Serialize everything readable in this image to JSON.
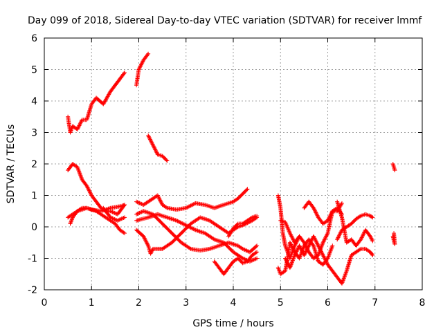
{
  "chart_data": {
    "type": "scatter",
    "title": "Day 099 of 2018, Sidereal Day-to-day VTEC variation (SDTVAR) for receiver lmmf",
    "xlabel": "GPS time / hours",
    "ylabel": "SDTVAR / TECUs",
    "xlim": [
      0,
      8
    ],
    "ylim": [
      -2,
      6
    ],
    "x_ticks": [
      "0",
      "1",
      "2",
      "3",
      "4",
      "5",
      "6",
      "7",
      "8"
    ],
    "y_ticks": [
      "-2",
      "-1",
      "0",
      "1",
      "2",
      "3",
      "4",
      "5",
      "6"
    ],
    "grid": true,
    "marker": "+",
    "color": "#ff0000",
    "traces": [
      [
        [
          0.5,
          3.5
        ],
        [
          0.55,
          3.0
        ],
        [
          0.6,
          3.2
        ],
        [
          0.7,
          3.1
        ],
        [
          0.8,
          3.4
        ],
        [
          0.9,
          3.4
        ],
        [
          1.0,
          3.9
        ],
        [
          1.1,
          4.1
        ],
        [
          1.25,
          3.9
        ],
        [
          1.4,
          4.3
        ],
        [
          1.55,
          4.6
        ],
        [
          1.7,
          4.9
        ]
      ],
      [
        [
          1.95,
          4.5
        ],
        [
          2.0,
          5.0
        ],
        [
          2.1,
          5.3
        ],
        [
          2.2,
          5.5
        ]
      ],
      [
        [
          2.2,
          2.9
        ],
        [
          2.3,
          2.6
        ],
        [
          2.4,
          2.3
        ],
        [
          2.5,
          2.25
        ],
        [
          2.6,
          2.1
        ]
      ],
      [
        [
          0.5,
          1.8
        ],
        [
          0.6,
          2.0
        ],
        [
          0.7,
          1.9
        ],
        [
          0.8,
          1.5
        ],
        [
          0.9,
          1.3
        ],
        [
          1.0,
          1.0
        ],
        [
          1.1,
          0.8
        ],
        [
          1.2,
          0.6
        ],
        [
          1.3,
          0.5
        ],
        [
          1.4,
          0.5
        ],
        [
          1.55,
          0.4
        ],
        [
          1.7,
          0.7
        ]
      ],
      [
        [
          0.55,
          0.1
        ],
        [
          0.6,
          0.3
        ],
        [
          0.7,
          0.5
        ],
        [
          0.8,
          0.6
        ],
        [
          0.9,
          0.6
        ],
        [
          1.0,
          0.55
        ],
        [
          1.2,
          0.5
        ],
        [
          1.4,
          0.6
        ],
        [
          1.6,
          0.65
        ],
        [
          1.7,
          0.7
        ]
      ],
      [
        [
          0.5,
          0.3
        ],
        [
          0.7,
          0.5
        ],
        [
          0.9,
          0.6
        ],
        [
          1.1,
          0.5
        ],
        [
          1.3,
          0.3
        ],
        [
          1.5,
          0.1
        ],
        [
          1.6,
          -0.1
        ],
        [
          1.7,
          -0.2
        ]
      ],
      [
        [
          1.25,
          0.6
        ],
        [
          1.4,
          0.3
        ],
        [
          1.55,
          0.2
        ],
        [
          1.7,
          0.3
        ]
      ],
      [
        [
          1.95,
          0.8
        ],
        [
          2.1,
          0.7
        ],
        [
          2.3,
          0.9
        ],
        [
          2.4,
          1.0
        ],
        [
          2.5,
          0.7
        ],
        [
          2.6,
          0.6
        ],
        [
          2.8,
          0.55
        ],
        [
          3.0,
          0.6
        ],
        [
          3.2,
          0.75
        ],
        [
          3.4,
          0.7
        ],
        [
          3.6,
          0.6
        ],
        [
          3.8,
          0.7
        ],
        [
          4.0,
          0.8
        ],
        [
          4.1,
          0.9
        ],
        [
          4.2,
          1.05
        ],
        [
          4.3,
          1.2
        ]
      ],
      [
        [
          1.95,
          0.4
        ],
        [
          2.1,
          0.5
        ],
        [
          2.3,
          0.4
        ],
        [
          2.5,
          0.1
        ],
        [
          2.7,
          -0.2
        ],
        [
          2.9,
          -0.5
        ],
        [
          3.1,
          -0.7
        ],
        [
          3.3,
          -0.75
        ],
        [
          3.5,
          -0.7
        ],
        [
          3.7,
          -0.6
        ],
        [
          3.9,
          -0.5
        ],
        [
          4.1,
          -0.6
        ],
        [
          4.2,
          -0.7
        ],
        [
          4.35,
          -0.8
        ],
        [
          4.5,
          -0.6
        ]
      ],
      [
        [
          1.95,
          0.2
        ],
        [
          2.2,
          0.3
        ],
        [
          2.4,
          0.4
        ],
        [
          2.6,
          0.3
        ],
        [
          2.8,
          0.2
        ],
        [
          3.0,
          0.05
        ],
        [
          3.2,
          -0.1
        ],
        [
          3.4,
          -0.2
        ],
        [
          3.6,
          -0.4
        ],
        [
          3.8,
          -0.5
        ],
        [
          4.0,
          -0.8
        ],
        [
          4.2,
          -1.0
        ],
        [
          4.35,
          -1.1
        ],
        [
          4.5,
          -1.0
        ]
      ],
      [
        [
          1.95,
          -0.1
        ],
        [
          2.1,
          -0.3
        ],
        [
          2.2,
          -0.6
        ],
        [
          2.25,
          -0.85
        ],
        [
          2.3,
          -0.7
        ],
        [
          2.5,
          -0.7
        ],
        [
          2.7,
          -0.5
        ],
        [
          2.9,
          -0.2
        ],
        [
          3.1,
          0.1
        ],
        [
          3.3,
          0.3
        ],
        [
          3.5,
          0.2
        ],
        [
          3.7,
          0.0
        ],
        [
          3.9,
          -0.2
        ],
        [
          4.0,
          -0.1
        ],
        [
          4.1,
          0.0
        ],
        [
          4.2,
          0.05
        ],
        [
          4.4,
          0.2
        ],
        [
          4.5,
          0.3
        ]
      ],
      [
        [
          3.6,
          -1.1
        ],
        [
          3.7,
          -1.3
        ],
        [
          3.8,
          -1.5
        ],
        [
          3.9,
          -1.3
        ],
        [
          4.0,
          -1.1
        ],
        [
          4.1,
          -1.0
        ],
        [
          4.2,
          -1.15
        ],
        [
          4.3,
          -1.1
        ],
        [
          4.4,
          -0.9
        ],
        [
          4.5,
          -0.8
        ]
      ],
      [
        [
          3.9,
          -0.3
        ],
        [
          4.0,
          -0.05
        ],
        [
          4.1,
          0.1
        ],
        [
          4.2,
          0.1
        ],
        [
          4.3,
          0.2
        ],
        [
          4.4,
          0.3
        ],
        [
          4.5,
          0.35
        ]
      ],
      [
        [
          4.95,
          1.0
        ],
        [
          5.0,
          0.6
        ],
        [
          5.05,
          -0.2
        ],
        [
          5.1,
          -0.6
        ],
        [
          5.2,
          -1.0
        ],
        [
          5.3,
          -0.6
        ],
        [
          5.4,
          -0.3
        ]
      ],
      [
        [
          4.95,
          -1.3
        ],
        [
          5.0,
          -1.5
        ],
        [
          5.1,
          -1.4
        ],
        [
          5.15,
          -1.0
        ],
        [
          5.2,
          -0.5
        ],
        [
          5.3,
          -0.8
        ],
        [
          5.4,
          -1.0
        ],
        [
          5.5,
          -0.6
        ],
        [
          5.6,
          -0.4
        ],
        [
          5.7,
          -0.6
        ],
        [
          5.8,
          -1.1
        ],
        [
          5.9,
          -1.2
        ],
        [
          6.0,
          -1.0
        ],
        [
          6.1,
          -0.6
        ]
      ],
      [
        [
          5.0,
          0.2
        ],
        [
          5.1,
          0.15
        ],
        [
          5.2,
          -0.2
        ],
        [
          5.3,
          -0.5
        ],
        [
          5.4,
          -0.3
        ],
        [
          5.5,
          -0.5
        ],
        [
          5.6,
          -0.8
        ],
        [
          5.7,
          -1.0
        ],
        [
          5.8,
          -0.9
        ],
        [
          5.9,
          -0.5
        ],
        [
          6.0,
          -0.2
        ],
        [
          6.1,
          0.5
        ],
        [
          6.2,
          0.5
        ],
        [
          6.3,
          0.75
        ]
      ],
      [
        [
          5.1,
          -1.0
        ],
        [
          5.2,
          -1.3
        ],
        [
          5.3,
          -0.9
        ],
        [
          5.4,
          -0.6
        ],
        [
          5.5,
          -0.9
        ],
        [
          5.6,
          -0.6
        ],
        [
          5.7,
          -0.3
        ],
        [
          5.8,
          -0.6
        ],
        [
          5.9,
          -0.9
        ],
        [
          6.0,
          -1.2
        ],
        [
          6.1,
          -1.4
        ],
        [
          6.2,
          -1.6
        ],
        [
          6.3,
          -1.8
        ],
        [
          6.4,
          -1.4
        ],
        [
          6.5,
          -0.9
        ],
        [
          6.6,
          -0.8
        ],
        [
          6.7,
          -0.7
        ],
        [
          6.8,
          -0.7
        ],
        [
          6.9,
          -0.8
        ],
        [
          6.95,
          -0.9
        ]
      ],
      [
        [
          5.5,
          0.6
        ],
        [
          5.6,
          0.8
        ],
        [
          5.7,
          0.6
        ],
        [
          5.8,
          0.3
        ],
        [
          5.9,
          0.1
        ],
        [
          6.0,
          0.2
        ],
        [
          6.1,
          0.5
        ],
        [
          6.2,
          0.6
        ],
        [
          6.3,
          0.4
        ]
      ],
      [
        [
          6.2,
          -0.4
        ],
        [
          6.3,
          -0.1
        ],
        [
          6.4,
          0.0
        ],
        [
          6.5,
          0.1
        ],
        [
          6.6,
          0.25
        ],
        [
          6.7,
          0.35
        ],
        [
          6.8,
          0.4
        ],
        [
          6.9,
          0.35
        ],
        [
          6.95,
          0.3
        ]
      ],
      [
        [
          6.2,
          0.8
        ],
        [
          6.3,
          0.3
        ],
        [
          6.4,
          -0.5
        ],
        [
          6.5,
          -0.4
        ],
        [
          6.6,
          -0.6
        ],
        [
          6.7,
          -0.4
        ],
        [
          6.8,
          -0.1
        ],
        [
          6.9,
          -0.3
        ],
        [
          6.95,
          -0.45
        ]
      ],
      [
        [
          7.38,
          2.0
        ],
        [
          7.42,
          1.8
        ]
      ],
      [
        [
          7.38,
          -0.3
        ],
        [
          7.4,
          -0.45
        ],
        [
          7.42,
          -0.55
        ],
        [
          7.4,
          -0.2
        ]
      ]
    ]
  }
}
